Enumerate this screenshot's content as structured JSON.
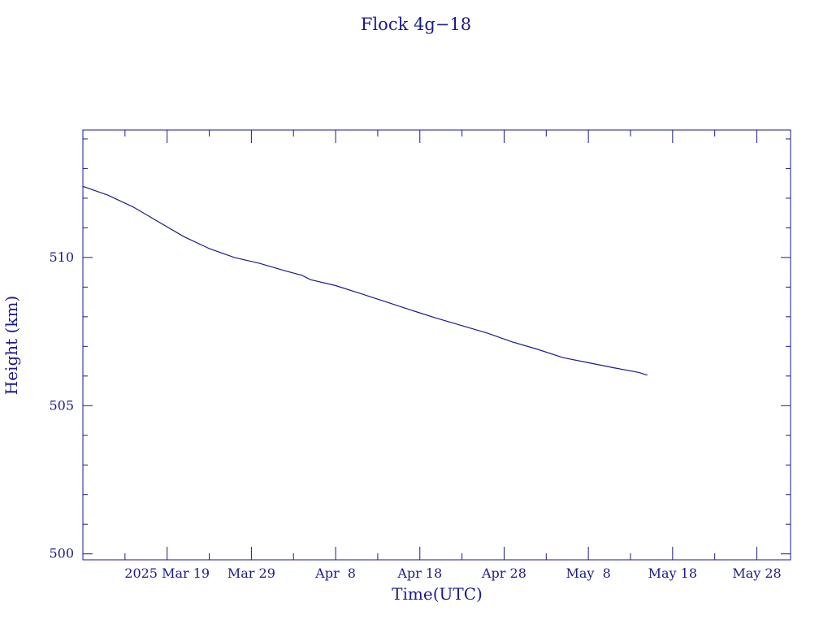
{
  "chart_data": {
    "type": "line",
    "title": "Flock 4g−18",
    "xlabel": "Time(UTC)",
    "ylabel": "Height (km)",
    "color": "#1a1a8c",
    "grid": false,
    "x_range": [
      "2025-03-09",
      "2025-06-01"
    ],
    "y_range": [
      499.8,
      514.3
    ],
    "x_ticks": [
      {
        "date": "2025-03-19",
        "label": "2025 Mar 19"
      },
      {
        "date": "2025-03-29",
        "label": "Mar 29"
      },
      {
        "date": "2025-04-08",
        "label": "Apr  8"
      },
      {
        "date": "2025-04-18",
        "label": "Apr 18"
      },
      {
        "date": "2025-04-28",
        "label": "Apr 28"
      },
      {
        "date": "2025-05-08",
        "label": "May  8"
      },
      {
        "date": "2025-05-18",
        "label": "May 18"
      },
      {
        "date": "2025-05-28",
        "label": "May 28"
      }
    ],
    "y_ticks": [
      {
        "value": 500,
        "label": "500"
      },
      {
        "value": 505,
        "label": "505"
      },
      {
        "value": 510,
        "label": "510"
      }
    ],
    "series": [
      {
        "x": [
          "2025-03-09",
          "2025-03-12",
          "2025-03-15",
          "2025-03-18",
          "2025-03-21",
          "2025-03-24",
          "2025-03-27",
          "2025-03-30",
          "2025-04-02",
          "2025-04-04",
          "2025-04-05",
          "2025-04-08",
          "2025-04-11",
          "2025-04-14",
          "2025-04-17",
          "2025-04-20",
          "2025-04-23",
          "2025-04-26",
          "2025-04-29",
          "2025-05-02",
          "2025-05-05",
          "2025-05-08",
          "2025-05-11",
          "2025-05-14",
          "2025-05-15"
        ],
        "values": [
          512.4,
          512.1,
          511.7,
          511.2,
          510.7,
          510.3,
          510.0,
          509.8,
          509.55,
          509.4,
          509.25,
          509.05,
          508.78,
          508.5,
          508.22,
          507.95,
          507.7,
          507.45,
          507.15,
          506.9,
          506.62,
          506.45,
          506.28,
          506.12,
          506.03
        ]
      }
    ]
  }
}
